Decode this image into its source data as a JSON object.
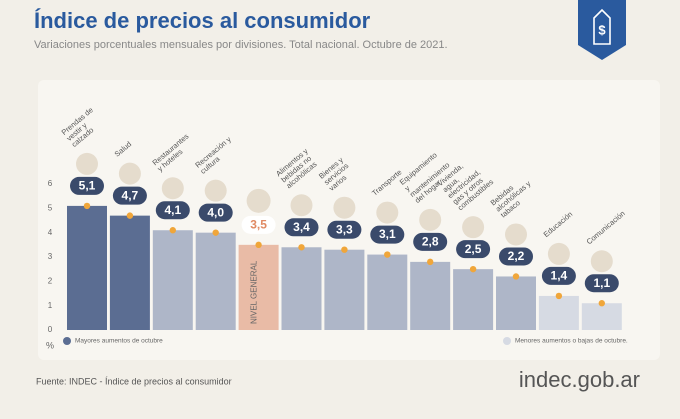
{
  "chart_data": {
    "type": "bar",
    "title": "Índice de precios al consumidor",
    "subtitle": "Variaciones porcentuales mensuales por divisiones. Total nacional. Octubre de 2021.",
    "categories": [
      "Prendas de vestir y calzado",
      "Salud",
      "Restaurantes y hoteles",
      "Recreación y cultura",
      "NIVEL GENERAL",
      "Alimentos y bebidas no alcohólicas",
      "Bienes y servicios varios",
      "Transporte",
      "Equipamiento y mantenimiento del hogar",
      "Vivienda, agua, electricidad, gas y otros combustibles",
      "Bebidas alcohólicas y tabaco",
      "Educación",
      "Comunicación"
    ],
    "values": [
      5.1,
      4.7,
      4.1,
      4.0,
      3.5,
      3.4,
      3.3,
      3.1,
      2.8,
      2.5,
      2.2,
      1.4,
      1.1
    ],
    "value_labels": [
      "5,1",
      "4,7",
      "4,1",
      "4,0",
      "3,5",
      "3,4",
      "3,3",
      "3,1",
      "2,8",
      "2,5",
      "2,2",
      "1,4",
      "1,1"
    ],
    "colors": [
      "#5b6d92",
      "#5b6d92",
      "#aeb6c8",
      "#aeb6c8",
      "#e9bba6",
      "#aeb6c8",
      "#aeb6c8",
      "#aeb6c8",
      "#aeb6c8",
      "#aeb6c8",
      "#aeb6c8",
      "#d6dae3",
      "#d6dae3"
    ],
    "ylim": [
      0,
      6
    ],
    "yticks": [
      0,
      1,
      2,
      3,
      4,
      5,
      6
    ],
    "y_unit": "%",
    "legend": [
      {
        "label": "Mayores aumentos de octubre",
        "color": "#5b6d92"
      },
      {
        "label": "Menores aumentos o bajas de octubre.",
        "color": "#d6dae3"
      }
    ],
    "source": "Fuente: INDEC - Índice de precios al consumidor",
    "logo": "indec.gob.ar"
  }
}
